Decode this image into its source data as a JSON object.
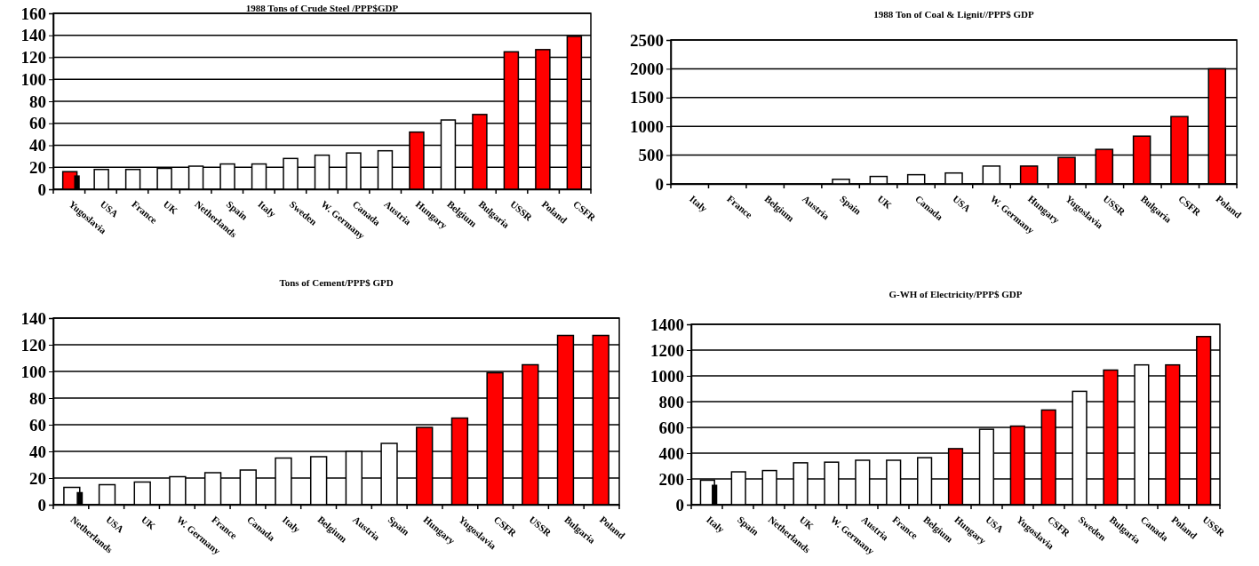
{
  "chart_data": [
    {
      "type": "bar",
      "title": "1988 Tons of Crude Steel  /PPP$GDP",
      "categories": [
        "Yugoslavia",
        "USA",
        "France",
        "UK",
        "Netherlands",
        "Spain",
        "Italy",
        "Sweden",
        "W. Germany",
        "Canada",
        "Austria",
        "Hungary",
        "Belgium",
        "Bulgaria",
        "USSR",
        "Poland",
        "CSFR"
      ],
      "ylim": [
        0,
        160
      ],
      "yticks": [
        0,
        20,
        40,
        60,
        80,
        100,
        120,
        140,
        160
      ],
      "grid": "y",
      "series": [
        {
          "values": [
            16,
            18,
            18,
            19,
            21,
            23,
            23,
            28,
            31,
            33,
            35,
            52,
            63,
            68,
            125,
            127,
            139
          ],
          "colors": [
            "#ff0000",
            "#ffffff",
            "#ffffff",
            "#ffffff",
            "#ffffff",
            "#ffffff",
            "#ffffff",
            "#ffffff",
            "#ffffff",
            "#ffffff",
            "#ffffff",
            "#ff0000",
            "#ffffff",
            "#ff0000",
            "#ff0000",
            "#ff0000",
            "#ff0000"
          ]
        },
        {
          "color": "#000000",
          "values": [
            12,
            null,
            null,
            null,
            null,
            null,
            null,
            null,
            null,
            null,
            null,
            null,
            null,
            null,
            null,
            null,
            null
          ]
        }
      ]
    },
    {
      "type": "bar",
      "title": "1988 Ton of Coal & Lignit//PPP$ GDP",
      "categories": [
        "Italy",
        "France",
        "Belgium",
        "Austria",
        "Spain",
        "UK",
        "Canada",
        "USA",
        "W. Germany",
        "Hungary",
        "Yugoslavia",
        "USSR",
        "Bulgaria",
        "CSFR",
        "Poland"
      ],
      "ylim": [
        0,
        2500
      ],
      "yticks": [
        0,
        500,
        1000,
        1500,
        2000,
        2500
      ],
      "grid": "y",
      "series": [
        {
          "values": [
            0,
            0,
            0,
            0,
            80,
            130,
            160,
            190,
            310,
            310,
            460,
            600,
            830,
            1170,
            2000
          ],
          "colors": [
            "#ffffff",
            "#ffffff",
            "#ffffff",
            "#ffffff",
            "#ffffff",
            "#ffffff",
            "#ffffff",
            "#ffffff",
            "#ffffff",
            "#ff0000",
            "#ff0000",
            "#ff0000",
            "#ff0000",
            "#ff0000",
            "#ff0000"
          ]
        }
      ]
    },
    {
      "type": "bar",
      "title": "Tons of Cement/PPP$ GPD",
      "categories": [
        "Netherlands",
        "USA",
        "UK",
        "W. Germany",
        "France",
        "Canada",
        "Italy",
        "Belgium",
        "Austria",
        "Spain",
        "Hungary",
        "Yugoslavia",
        "CSFR",
        "USSR",
        "Bulgaria",
        "Poland"
      ],
      "ylim": [
        0,
        140
      ],
      "yticks": [
        0,
        20,
        40,
        60,
        80,
        100,
        120,
        140
      ],
      "grid": "y",
      "series": [
        {
          "values": [
            13,
            15,
            17,
            21,
            24,
            26,
            35,
            36,
            40,
            46,
            58,
            65,
            99,
            105,
            127,
            127
          ],
          "colors": [
            "#ffffff",
            "#ffffff",
            "#ffffff",
            "#ffffff",
            "#ffffff",
            "#ffffff",
            "#ffffff",
            "#ffffff",
            "#ffffff",
            "#ffffff",
            "#ff0000",
            "#ff0000",
            "#ff0000",
            "#ff0000",
            "#ff0000",
            "#ff0000"
          ]
        },
        {
          "color": "#000000",
          "values": [
            9,
            null,
            null,
            null,
            null,
            null,
            null,
            null,
            null,
            null,
            null,
            null,
            null,
            null,
            null,
            null
          ]
        }
      ]
    },
    {
      "type": "bar",
      "title": "G-WH of Electricity/PPP$ GDP",
      "categories": [
        "Italy",
        "Spain",
        "Netherlands",
        "UK",
        "W. Germany",
        "Austria",
        "France",
        "Belgium",
        "Hungary",
        "USA",
        "Yugoslavia",
        "CSFR",
        "Sweden",
        "Bulgaria",
        "Canada",
        "Poland",
        "USSR"
      ],
      "ylim": [
        0,
        1400
      ],
      "yticks": [
        0,
        200,
        400,
        600,
        800,
        1000,
        1200,
        1400
      ],
      "grid": "y",
      "series": [
        {
          "values": [
            190,
            255,
            265,
            325,
            330,
            345,
            345,
            365,
            435,
            585,
            610,
            735,
            880,
            1045,
            1085,
            1085,
            1305
          ],
          "colors": [
            "#ffffff",
            "#ffffff",
            "#ffffff",
            "#ffffff",
            "#ffffff",
            "#ffffff",
            "#ffffff",
            "#ffffff",
            "#ff0000",
            "#ffffff",
            "#ff0000",
            "#ff0000",
            "#ffffff",
            "#ff0000",
            "#ffffff",
            "#ff0000",
            "#ff0000"
          ]
        },
        {
          "color": "#000000",
          "values": [
            150,
            null,
            null,
            null,
            null,
            null,
            null,
            null,
            null,
            null,
            null,
            null,
            null,
            null,
            null,
            null,
            null
          ]
        }
      ]
    }
  ]
}
